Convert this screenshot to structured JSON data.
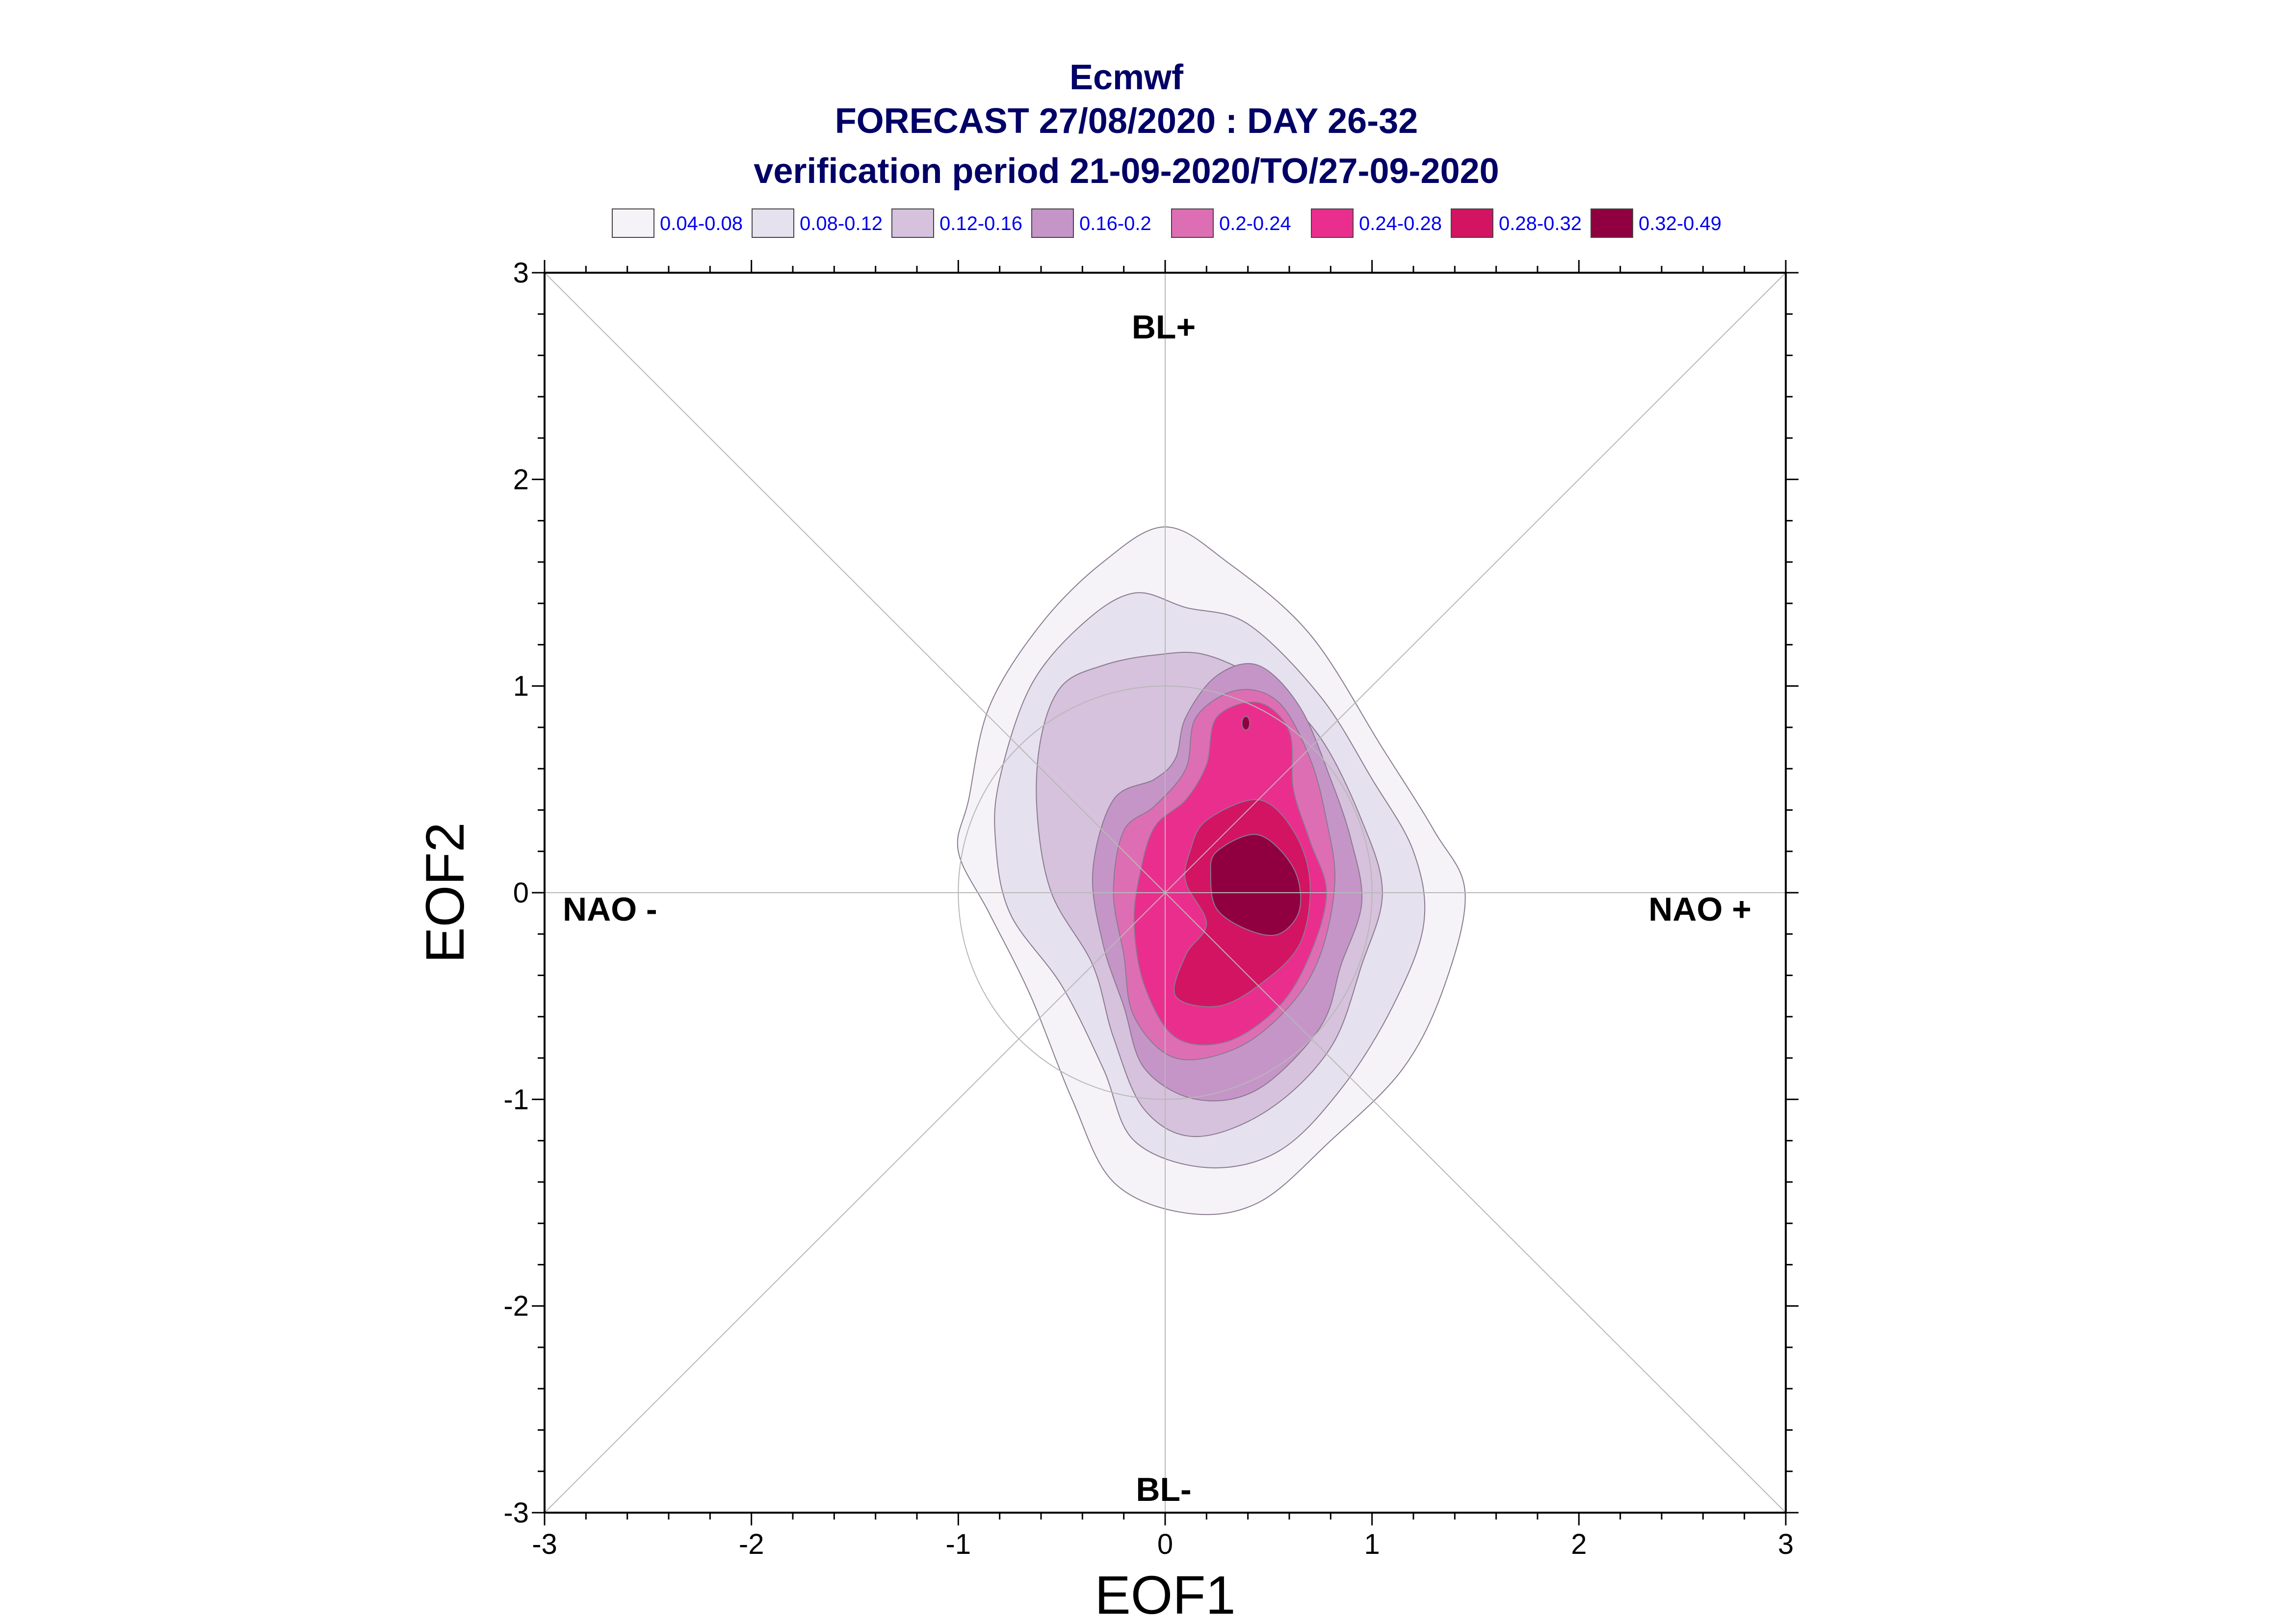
{
  "titles": {
    "line1": "Ecmwf",
    "line2": "FORECAST 27/08/2020 : DAY 26-32",
    "line3": "verification period 21-09-2020/TO/27-09-2020"
  },
  "regimes": {
    "top": "BL+",
    "bottom": "BL-",
    "left": "NAO -",
    "right": "NAO +"
  },
  "chart_data": {
    "type": "contour",
    "xlabel": "EOF1",
    "ylabel": "EOF2",
    "xlim": [
      -3,
      3
    ],
    "ylim": [
      -3,
      3
    ],
    "xticks": [
      "-3",
      "-2",
      "-1",
      "0",
      "1",
      "2",
      "3"
    ],
    "yticks": [
      "3",
      "2",
      "1",
      "0",
      "-1",
      "-2",
      "-3"
    ],
    "reference_circle_radius": 1,
    "diagonals": true,
    "grid": false,
    "legend_position": "top",
    "legend": [
      {
        "label": "0.04-0.08",
        "color": "#f5f3f8"
      },
      {
        "label": "0.08-0.12",
        "color": "#e6e1ee"
      },
      {
        "label": "0.12-0.16",
        "color": "#d6c2dc"
      },
      {
        "label": "0.16-0.2",
        "color": "#c595c8"
      },
      {
        "label": "0.2-0.24",
        "color": "#de6eb3"
      },
      {
        "label": "0.24-0.28",
        "color": "#ea2e8e"
      },
      {
        "label": "0.28-0.32",
        "color": "#d21463"
      },
      {
        "label": "0.32-0.49",
        "color": "#900040"
      }
    ],
    "density_contours": [
      {
        "level": "0.04-0.08",
        "points": [
          [
            -0.95,
            0.45
          ],
          [
            -0.85,
            0.9
          ],
          [
            -0.6,
            1.3
          ],
          [
            -0.3,
            1.6
          ],
          [
            0,
            1.77
          ],
          [
            0.3,
            1.6
          ],
          [
            0.7,
            1.25
          ],
          [
            1.05,
            0.7
          ],
          [
            1.3,
            0.3
          ],
          [
            1.45,
            0
          ],
          [
            1.35,
            -0.45
          ],
          [
            1.15,
            -0.85
          ],
          [
            0.8,
            -1.2
          ],
          [
            0.45,
            -1.5
          ],
          [
            0.1,
            -1.55
          ],
          [
            -0.25,
            -1.4
          ],
          [
            -0.45,
            -1
          ],
          [
            -0.65,
            -0.5
          ],
          [
            -0.85,
            -0.1
          ],
          [
            -1.0,
            0.2
          ]
        ]
      },
      {
        "level": "0.08-0.12",
        "points": [
          [
            -0.8,
            0.55
          ],
          [
            -0.65,
            1.0
          ],
          [
            -0.4,
            1.3
          ],
          [
            -0.15,
            1.45
          ],
          [
            0.1,
            1.38
          ],
          [
            0.4,
            1.3
          ],
          [
            0.75,
            0.95
          ],
          [
            1.0,
            0.55
          ],
          [
            1.2,
            0.2
          ],
          [
            1.25,
            -0.15
          ],
          [
            1.1,
            -0.55
          ],
          [
            0.85,
            -0.95
          ],
          [
            0.55,
            -1.25
          ],
          [
            0.2,
            -1.33
          ],
          [
            -0.15,
            -1.2
          ],
          [
            -0.3,
            -0.85
          ],
          [
            -0.5,
            -0.45
          ],
          [
            -0.75,
            -0.1
          ],
          [
            -0.82,
            0.25
          ]
        ]
      },
      {
        "level": "0.12-0.16",
        "points": [
          [
            -0.6,
            0.75
          ],
          [
            -0.5,
            1.0
          ],
          [
            -0.3,
            1.1
          ],
          [
            -0.05,
            1.15
          ],
          [
            0.2,
            1.15
          ],
          [
            0.5,
            1.0
          ],
          [
            0.75,
            0.75
          ],
          [
            0.95,
            0.35
          ],
          [
            1.05,
            0
          ],
          [
            0.95,
            -0.35
          ],
          [
            0.8,
            -0.75
          ],
          [
            0.5,
            -1.05
          ],
          [
            0.15,
            -1.18
          ],
          [
            -0.1,
            -1.05
          ],
          [
            -0.25,
            -0.7
          ],
          [
            -0.35,
            -0.35
          ],
          [
            -0.55,
            0
          ],
          [
            -0.62,
            0.4
          ]
        ]
      },
      {
        "level": "0.16-0.2",
        "points": [
          [
            0.1,
            0.85
          ],
          [
            0.25,
            1.05
          ],
          [
            0.45,
            1.1
          ],
          [
            0.65,
            0.9
          ],
          [
            0.8,
            0.55
          ],
          [
            0.9,
            0.25
          ],
          [
            0.95,
            -0.05
          ],
          [
            0.85,
            -0.35
          ],
          [
            0.75,
            -0.65
          ],
          [
            0.45,
            -0.95
          ],
          [
            0.15,
            -1.0
          ],
          [
            -0.1,
            -0.85
          ],
          [
            -0.2,
            -0.55
          ],
          [
            -0.3,
            -0.25
          ],
          [
            -0.35,
            0.1
          ],
          [
            -0.25,
            0.45
          ],
          [
            -0.05,
            0.55
          ],
          [
            0.05,
            0.65
          ]
        ]
      },
      {
        "level": "0.2-0.24",
        "points": [
          [
            0.15,
            0.85
          ],
          [
            0.35,
            0.98
          ],
          [
            0.55,
            0.92
          ],
          [
            0.7,
            0.65
          ],
          [
            0.78,
            0.35
          ],
          [
            0.82,
            0.05
          ],
          [
            0.75,
            -0.3
          ],
          [
            0.6,
            -0.55
          ],
          [
            0.35,
            -0.75
          ],
          [
            0.05,
            -0.8
          ],
          [
            -0.15,
            -0.6
          ],
          [
            -0.2,
            -0.3
          ],
          [
            -0.25,
            0
          ],
          [
            -0.2,
            0.3
          ],
          [
            -0.05,
            0.42
          ],
          [
            0.1,
            0.6
          ]
        ]
      },
      {
        "level": "0.24-0.28",
        "points": [
          [
            0.25,
            0.85
          ],
          [
            0.45,
            0.92
          ],
          [
            0.6,
            0.78
          ],
          [
            0.62,
            0.5
          ],
          [
            0.7,
            0.25
          ],
          [
            0.78,
            0
          ],
          [
            0.7,
            -0.3
          ],
          [
            0.55,
            -0.55
          ],
          [
            0.3,
            -0.72
          ],
          [
            0.05,
            -0.7
          ],
          [
            -0.1,
            -0.45
          ],
          [
            -0.15,
            -0.15
          ],
          [
            -0.12,
            0.1
          ],
          [
            -0.05,
            0.32
          ],
          [
            0.1,
            0.45
          ],
          [
            0.2,
            0.62
          ]
        ]
      },
      {
        "level": "0.28-0.32",
        "points": [
          [
            0.2,
            0.35
          ],
          [
            0.45,
            0.45
          ],
          [
            0.62,
            0.3
          ],
          [
            0.7,
            0.05
          ],
          [
            0.65,
            -0.25
          ],
          [
            0.45,
            -0.45
          ],
          [
            0.25,
            -0.55
          ],
          [
            0.05,
            -0.5
          ],
          [
            0.1,
            -0.3
          ],
          [
            0.2,
            -0.15
          ],
          [
            0.1,
            0.05
          ],
          [
            0.12,
            0.2
          ]
        ]
      },
      {
        "level": "0.32-0.49",
        "points": [
          [
            0.25,
            0.2
          ],
          [
            0.45,
            0.28
          ],
          [
            0.62,
            0.12
          ],
          [
            0.65,
            -0.08
          ],
          [
            0.55,
            -0.2
          ],
          [
            0.4,
            -0.18
          ],
          [
            0.25,
            -0.08
          ],
          [
            0.22,
            0.08
          ]
        ]
      }
    ],
    "local_maximum": {
      "x": 0.39,
      "y": 0.82
    }
  }
}
